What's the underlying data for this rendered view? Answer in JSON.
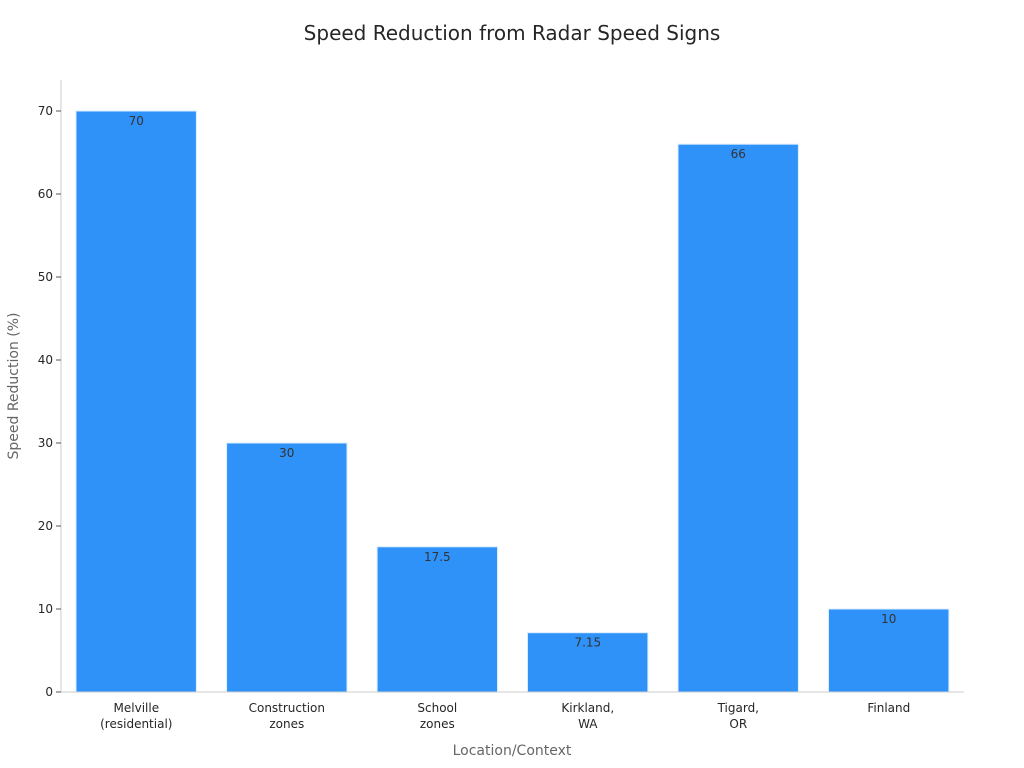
{
  "chart_data": {
    "type": "bar",
    "title": "Speed Reduction from Radar Speed Signs",
    "xlabel": "Location/Context",
    "ylabel": "Speed Reduction (%)",
    "categories": [
      [
        "Melville",
        "(residential)"
      ],
      [
        "Construction",
        "zones"
      ],
      [
        "School",
        "zones"
      ],
      [
        "Kirkland,",
        "WA"
      ],
      [
        "Tigard,",
        "OR"
      ],
      [
        "Finland"
      ]
    ],
    "values": [
      70,
      30,
      17.5,
      7.15,
      66,
      10
    ],
    "data_labels": [
      "70",
      "30",
      "17.5",
      "7.15",
      "66",
      "10"
    ],
    "yticks": [
      0,
      10,
      20,
      30,
      40,
      50,
      60,
      70
    ],
    "ylim": [
      0,
      74
    ],
    "bar_color": "#2f92f8",
    "bar_edge_color": "#d9ecff",
    "grid": false
  }
}
